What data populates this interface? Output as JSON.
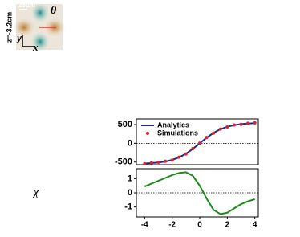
{
  "image": {
    "scale": "25μm",
    "angle": "θ",
    "z": "z=-3.2cm",
    "y_axis": "y",
    "x_axis": "x"
  },
  "label": "χ",
  "chart_data": [
    {
      "type": "line",
      "legend": "upper left",
      "zero_line": true,
      "x": [
        -4,
        -3.5,
        -3,
        -2.5,
        -2,
        -1.5,
        -1,
        -0.5,
        0,
        0.5,
        1,
        1.5,
        2,
        2.5,
        3,
        3.5,
        4
      ],
      "xlim": [
        -4.6,
        4.25
      ],
      "ylim": [
        -570,
        650
      ],
      "yticks": [
        500,
        0,
        -500
      ],
      "series": [
        {
          "name": "Analytics",
          "color": "#1a2a9a",
          "style": "line",
          "values": [
            -537,
            -528,
            -512,
            -486,
            -442,
            -375,
            -278,
            -149,
            0,
            149,
            278,
            375,
            442,
            486,
            512,
            528,
            537
          ]
        },
        {
          "name": "Simulations",
          "color": "#e0202a",
          "style": "points",
          "values": [
            -545,
            -520,
            -505,
            -478,
            -450,
            -370,
            -285,
            -140,
            5,
            155,
            270,
            380,
            435,
            490,
            505,
            535,
            545
          ]
        }
      ]
    },
    {
      "type": "line",
      "zero_line": true,
      "x": [
        -4,
        -3.5,
        -3,
        -2.5,
        -2,
        -1.5,
        -1,
        -0.5,
        0,
        0.5,
        1,
        1.5,
        2,
        2.5,
        3,
        3.5,
        4
      ],
      "xlim": [
        -4.6,
        4.25
      ],
      "ylim": [
        -1.7,
        1.7
      ],
      "yticks": [
        1,
        0,
        -1
      ],
      "xticks": [
        -4,
        -2,
        0,
        2,
        4
      ],
      "series": [
        {
          "name": "χ",
          "color": "#1a8a1a",
          "style": "line",
          "values": [
            0.45,
            0.65,
            0.85,
            1.05,
            1.25,
            1.4,
            1.45,
            1.2,
            0.5,
            -0.4,
            -1.2,
            -1.5,
            -1.4,
            -1.1,
            -0.8,
            -0.6,
            -0.45
          ]
        }
      ]
    }
  ]
}
